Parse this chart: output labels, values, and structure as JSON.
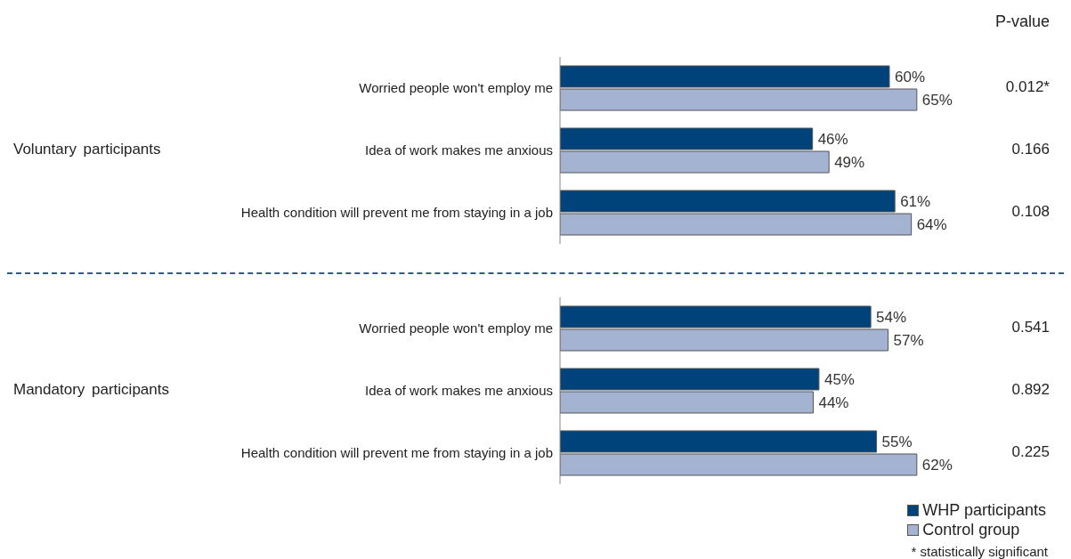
{
  "chart_data": [
    {
      "type": "bar",
      "orientation": "horizontal",
      "title": "Voluntary participants",
      "categories": [
        "Worried people won't employ me",
        "Idea of work makes me anxious",
        "Health condition will prevent me from staying in a job"
      ],
      "series": [
        {
          "color": "#00427a",
          "values": [
            60,
            46,
            61
          ],
          "value_labels": [
            "60%",
            "46%",
            "61%"
          ]
        },
        {
          "color": "#a3b3d1",
          "values": [
            65,
            49,
            64
          ],
          "value_labels": [
            "65%",
            "49%",
            "64%"
          ]
        }
      ],
      "tick_labels": "y",
      "annotations": [
        "P-value",
        "0.012*",
        "0.166",
        "0.108"
      ]
    },
    {
      "type": "bar",
      "orientation": "horizontal",
      "title": "Mandatory participants",
      "categories": [
        "Worried people won't employ me",
        "Idea of work makes me anxious",
        "Health condition will prevent me from staying in a job"
      ],
      "series": [
        {
          "name": "WHP participants",
          "color": "#00427a",
          "values": [
            54,
            45,
            55
          ],
          "value_labels": [
            "54%",
            "45%",
            "55%"
          ]
        },
        {
          "name": "Control group",
          "color": "#a3b3d1",
          "values": [
            57,
            44,
            62
          ],
          "value_labels": [
            "57%",
            "44%",
            "62%"
          ]
        }
      ],
      "tick_labels": "y",
      "legend": "bottom right",
      "annotations": [
        "0.541",
        "0.892",
        "0.225",
        "* statistically significant"
      ]
    }
  ]
}
